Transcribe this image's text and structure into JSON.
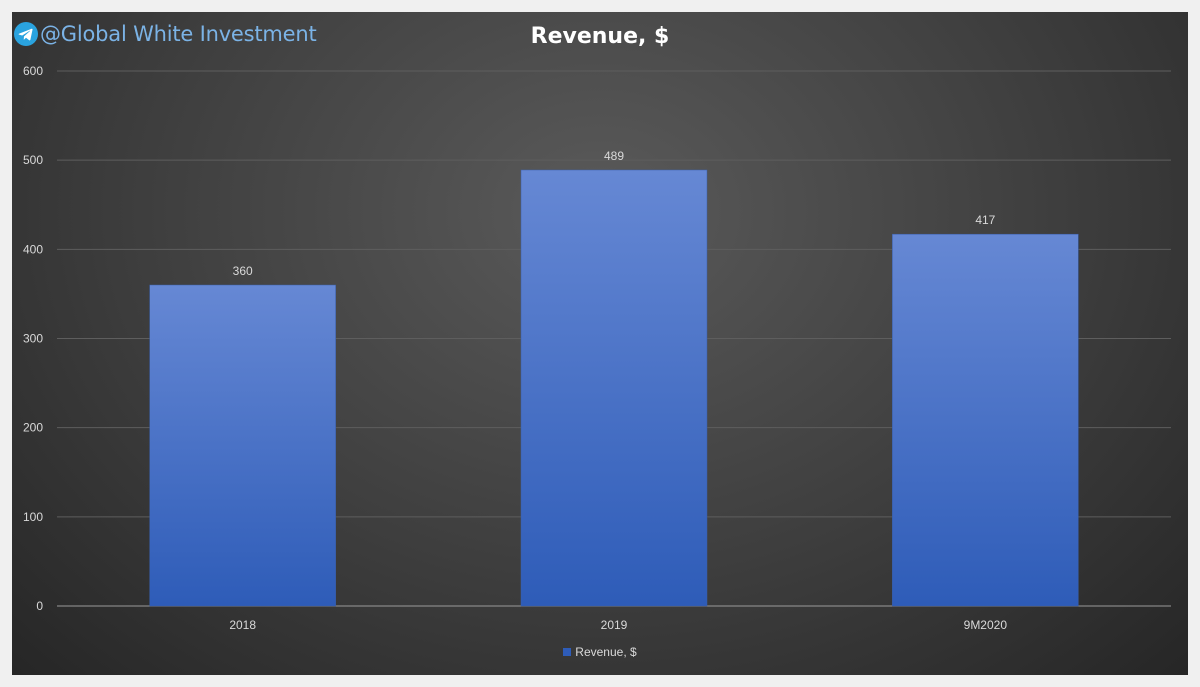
{
  "watermark": {
    "text": "@Global White Investment",
    "icon": "telegram-icon"
  },
  "colors": {
    "bar_top": "#6688d4",
    "bar_bottom": "#2e5cb8",
    "grid": "#5e5e5e",
    "text": "#d9d9d9"
  },
  "chart_data": {
    "type": "bar",
    "title": "Revenue, $",
    "xlabel": "",
    "ylabel": "",
    "categories": [
      "2018",
      "2019",
      "9M2020"
    ],
    "series": [
      {
        "name": "Revenue, $",
        "values": [
          360,
          489,
          417
        ]
      }
    ],
    "data_labels": [
      "360",
      "489",
      "417"
    ],
    "ylim": [
      0,
      600
    ],
    "yticks": [
      0,
      100,
      200,
      300,
      400,
      500,
      600
    ],
    "grid": true,
    "legend": "bottom"
  }
}
